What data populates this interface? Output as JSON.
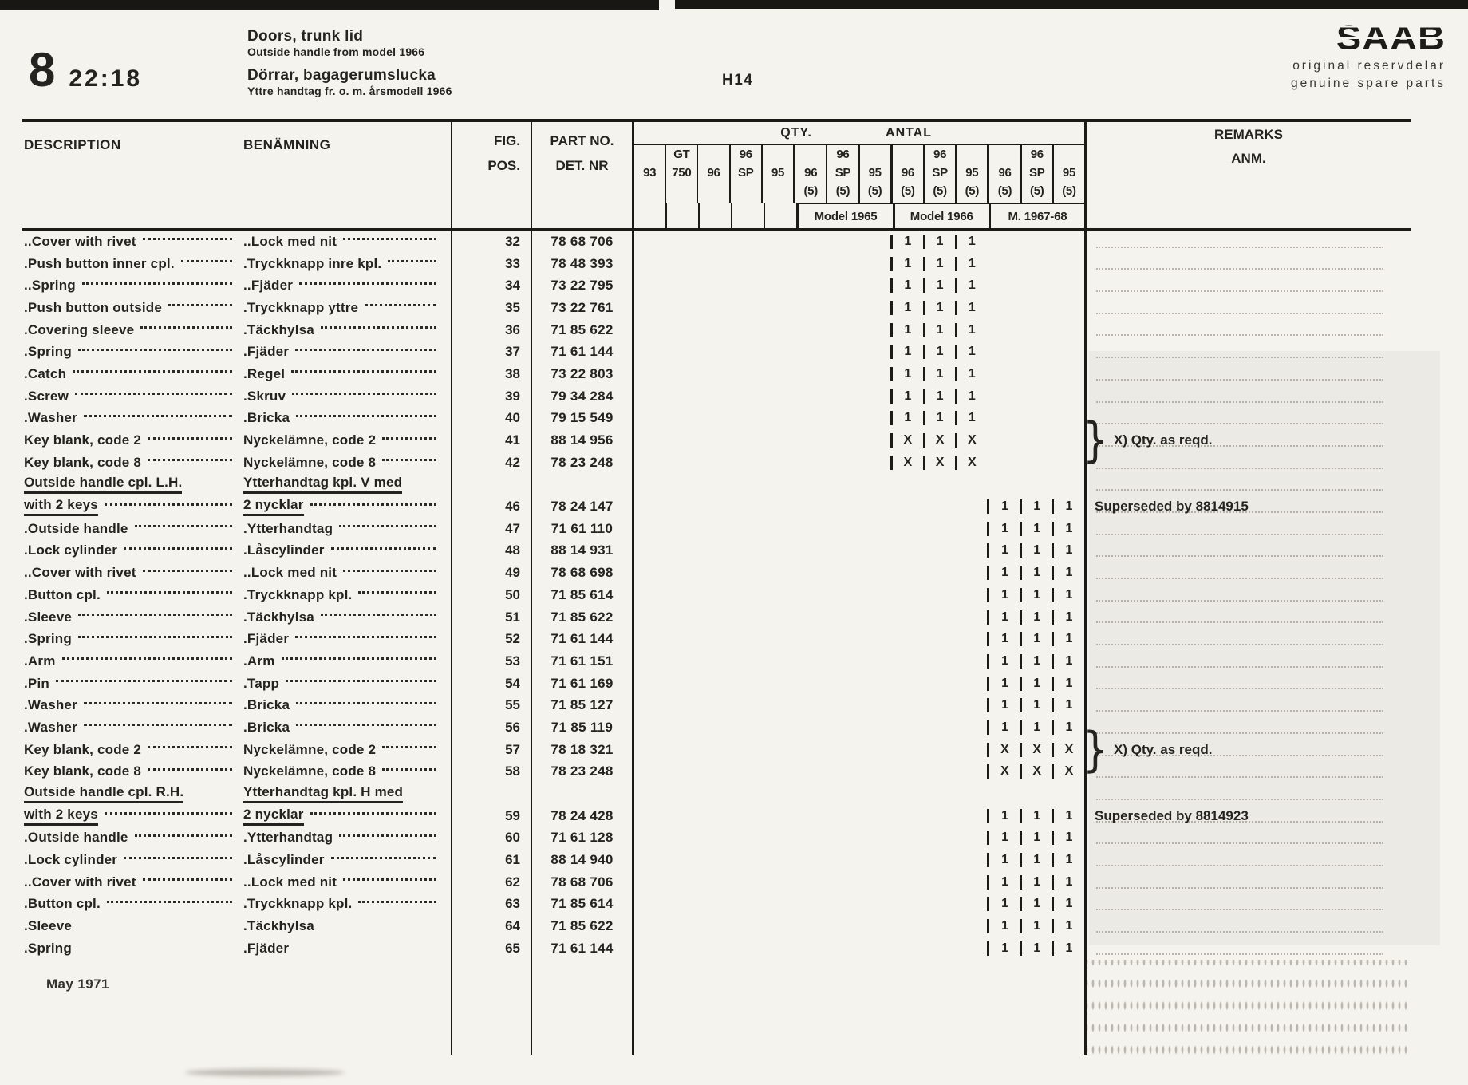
{
  "header": {
    "page_number": "8",
    "section_code": "22:18",
    "title_en": "Doors, trunk lid",
    "subtitle_en": "Outside handle from model 1966",
    "title_sv": "Dörrar, bagagerumslucka",
    "subtitle_sv": "Yttre handtag fr. o. m. årsmodell 1966",
    "plate_ref": "H14",
    "brand": {
      "logo": "SAAB",
      "tagline_sv": "original reservdelar",
      "tagline_en": "genuine spare parts"
    }
  },
  "table": {
    "col_headers": {
      "description": "DESCRIPTION",
      "benamning": "BENÄMNING",
      "fig": "FIG.",
      "pos": "POS.",
      "part_no": "PART NO.",
      "det_nr": "DET. NR",
      "qty": "QTY.",
      "antal": "ANTAL",
      "remarks": "REMARKS",
      "anm": "ANM."
    },
    "columns": [
      [
        "",
        "93",
        ""
      ],
      [
        "GT",
        "750",
        ""
      ],
      [
        "",
        "96",
        ""
      ],
      [
        "96",
        "SP",
        ""
      ],
      [
        "",
        "95",
        ""
      ],
      [
        "",
        "96",
        "(5)"
      ],
      [
        "96",
        "SP",
        "(5)"
      ],
      [
        "",
        "95",
        "(5)"
      ],
      [
        "",
        "96",
        "(5)"
      ],
      [
        "96",
        "SP",
        "(5)"
      ],
      [
        "",
        "95",
        "(5)"
      ],
      [
        "",
        "96",
        "(5)"
      ],
      [
        "96",
        "SP",
        "(5)"
      ],
      [
        "",
        "95",
        "(5)"
      ]
    ],
    "groups": [
      {
        "label": "Model 1965"
      },
      {
        "label": "Model 1966"
      },
      {
        "label": "M. 1967-68"
      }
    ],
    "brace_glyph": "}",
    "rows": [
      {
        "desc": "..Cover with rivet",
        "ben": "..Lock med nit",
        "fig": "32",
        "part": "78 68 706",
        "marks": {
          "group": 1,
          "values": [
            "1",
            "1",
            "1"
          ]
        }
      },
      {
        "desc": ".Push button inner cpl.",
        "ben": ".Tryckknapp inre kpl.",
        "fig": "33",
        "part": "78 48 393",
        "marks": {
          "group": 1,
          "values": [
            "1",
            "1",
            "1"
          ]
        }
      },
      {
        "desc": "..Spring",
        "ben": "..Fjäder",
        "fig": "34",
        "part": "73 22 795",
        "marks": {
          "group": 1,
          "values": [
            "1",
            "1",
            "1"
          ]
        }
      },
      {
        "desc": ".Push button outside",
        "ben": ".Tryckknapp yttre",
        "fig": "35",
        "part": "73 22 761",
        "marks": {
          "group": 1,
          "values": [
            "1",
            "1",
            "1"
          ]
        }
      },
      {
        "desc": ".Covering sleeve",
        "ben": ".Täckhylsa",
        "fig": "36",
        "part": "71 85 622",
        "marks": {
          "group": 1,
          "values": [
            "1",
            "1",
            "1"
          ]
        }
      },
      {
        "desc": ".Spring",
        "ben": ".Fjäder",
        "fig": "37",
        "part": "71 61 144",
        "marks": {
          "group": 1,
          "values": [
            "1",
            "1",
            "1"
          ]
        }
      },
      {
        "desc": ".Catch",
        "ben": ".Regel",
        "fig": "38",
        "part": "73 22 803",
        "marks": {
          "group": 1,
          "values": [
            "1",
            "1",
            "1"
          ]
        }
      },
      {
        "desc": ".Screw",
        "ben": ".Skruv",
        "fig": "39",
        "part": "79 34 284",
        "marks": {
          "group": 1,
          "values": [
            "1",
            "1",
            "1"
          ]
        }
      },
      {
        "desc": ".Washer",
        "ben": ".Bricka",
        "fig": "40",
        "part": "79 15 549",
        "marks": {
          "group": 1,
          "values": [
            "1",
            "1",
            "1"
          ]
        }
      },
      {
        "desc": "Key blank, code 2",
        "ben": "Nyckelämne, code 2",
        "fig": "41",
        "part": "88 14 956",
        "marks": {
          "group": 1,
          "values": [
            "X",
            "X",
            "X"
          ]
        },
        "remark": "X) Qty. as reqd.",
        "brace": true
      },
      {
        "desc": "Key blank, code 8",
        "ben": "Nyckelämne, code 8",
        "fig": "42",
        "part": "78 23 248",
        "marks": {
          "group": 1,
          "values": [
            "X",
            "X",
            "X"
          ]
        }
      },
      {
        "desc": "Outside handle cpl. L.H.",
        "ben": "Ytterhandtag kpl. V med",
        "fig": "",
        "part": "",
        "underline": true,
        "noleader": true
      },
      {
        "desc": "with 2 keys",
        "ben": "2 nycklar",
        "fig": "46",
        "part": "78 24 147",
        "marks": {
          "group": 2,
          "values": [
            "1",
            "1",
            "1"
          ]
        },
        "remark": "Superseded by 8814915",
        "underline": true
      },
      {
        "desc": ".Outside handle",
        "ben": ".Ytterhandtag",
        "fig": "47",
        "part": "71 61 110",
        "marks": {
          "group": 2,
          "values": [
            "1",
            "1",
            "1"
          ]
        }
      },
      {
        "desc": ".Lock cylinder",
        "ben": ".Låscylinder",
        "fig": "48",
        "part": "88 14 931",
        "marks": {
          "group": 2,
          "values": [
            "1",
            "1",
            "1"
          ]
        }
      },
      {
        "desc": "..Cover with rivet",
        "ben": "..Lock med nit",
        "fig": "49",
        "part": "78 68 698",
        "marks": {
          "group": 2,
          "values": [
            "1",
            "1",
            "1"
          ]
        }
      },
      {
        "desc": ".Button cpl.",
        "ben": ".Tryckknapp kpl.",
        "fig": "50",
        "part": "71 85 614",
        "marks": {
          "group": 2,
          "values": [
            "1",
            "1",
            "1"
          ]
        }
      },
      {
        "desc": ".Sleeve",
        "ben": ".Täckhylsa",
        "fig": "51",
        "part": "71 85 622",
        "marks": {
          "group": 2,
          "values": [
            "1",
            "1",
            "1"
          ]
        }
      },
      {
        "desc": ".Spring",
        "ben": ".Fjäder",
        "fig": "52",
        "part": "71 61 144",
        "marks": {
          "group": 2,
          "values": [
            "1",
            "1",
            "1"
          ]
        }
      },
      {
        "desc": ".Arm",
        "ben": ".Arm",
        "fig": "53",
        "part": "71 61 151",
        "marks": {
          "group": 2,
          "values": [
            "1",
            "1",
            "1"
          ]
        }
      },
      {
        "desc": ".Pin",
        "ben": ".Tapp",
        "fig": "54",
        "part": "71 61 169",
        "marks": {
          "group": 2,
          "values": [
            "1",
            "1",
            "1"
          ]
        }
      },
      {
        "desc": ".Washer",
        "ben": ".Bricka",
        "fig": "55",
        "part": "71 85 127",
        "marks": {
          "group": 2,
          "values": [
            "1",
            "1",
            "1"
          ]
        }
      },
      {
        "desc": ".Washer",
        "ben": ".Bricka",
        "fig": "56",
        "part": "71 85 119",
        "marks": {
          "group": 2,
          "values": [
            "1",
            "1",
            "1"
          ]
        }
      },
      {
        "desc": "Key blank, code 2",
        "ben": "Nyckelämne, code 2",
        "fig": "57",
        "part": "78 18 321",
        "marks": {
          "group": 2,
          "values": [
            "X",
            "X",
            "X"
          ]
        },
        "remark": "X) Qty. as reqd.",
        "brace": true
      },
      {
        "desc": "Key blank, code 8",
        "ben": "Nyckelämne, code 8",
        "fig": "58",
        "part": "78 23 248",
        "marks": {
          "group": 2,
          "values": [
            "X",
            "X",
            "X"
          ]
        }
      },
      {
        "desc": "Outside handle cpl. R.H.",
        "ben": "Ytterhandtag kpl. H med",
        "fig": "",
        "part": "",
        "underline": true,
        "noleader": true
      },
      {
        "desc": "with 2 keys",
        "ben": "2 nycklar",
        "fig": "59",
        "part": "78 24 428",
        "marks": {
          "group": 2,
          "values": [
            "1",
            "1",
            "1"
          ]
        },
        "remark": "Superseded by 8814923",
        "underline": true
      },
      {
        "desc": ".Outside handle",
        "ben": ".Ytterhandtag",
        "fig": "60",
        "part": "71 61 128",
        "marks": {
          "group": 2,
          "values": [
            "1",
            "1",
            "1"
          ]
        }
      },
      {
        "desc": ".Lock cylinder",
        "ben": ".Låscylinder",
        "fig": "61",
        "part": "88 14 940",
        "marks": {
          "group": 2,
          "values": [
            "1",
            "1",
            "1"
          ]
        }
      },
      {
        "desc": "..Cover with rivet",
        "ben": "..Lock med nit",
        "fig": "62",
        "part": "78 68 706",
        "marks": {
          "group": 2,
          "values": [
            "1",
            "1",
            "1"
          ]
        }
      },
      {
        "desc": ".Button cpl.",
        "ben": ".Tryckknapp kpl.",
        "fig": "63",
        "part": "71 85 614",
        "marks": {
          "group": 2,
          "values": [
            "1",
            "1",
            "1"
          ]
        }
      },
      {
        "desc": ".Sleeve",
        "ben": ".Täckhylsa",
        "fig": "64",
        "part": "71 85 622",
        "marks": {
          "group": 2,
          "values": [
            "1",
            "1",
            "1"
          ]
        },
        "noleader": true
      },
      {
        "desc": ".Spring",
        "ben": ".Fjäder",
        "fig": "65",
        "part": "71 61 144",
        "marks": {
          "group": 2,
          "values": [
            "1",
            "1",
            "1"
          ]
        },
        "noleader": true
      }
    ]
  },
  "footer": {
    "date": "May 1971"
  }
}
